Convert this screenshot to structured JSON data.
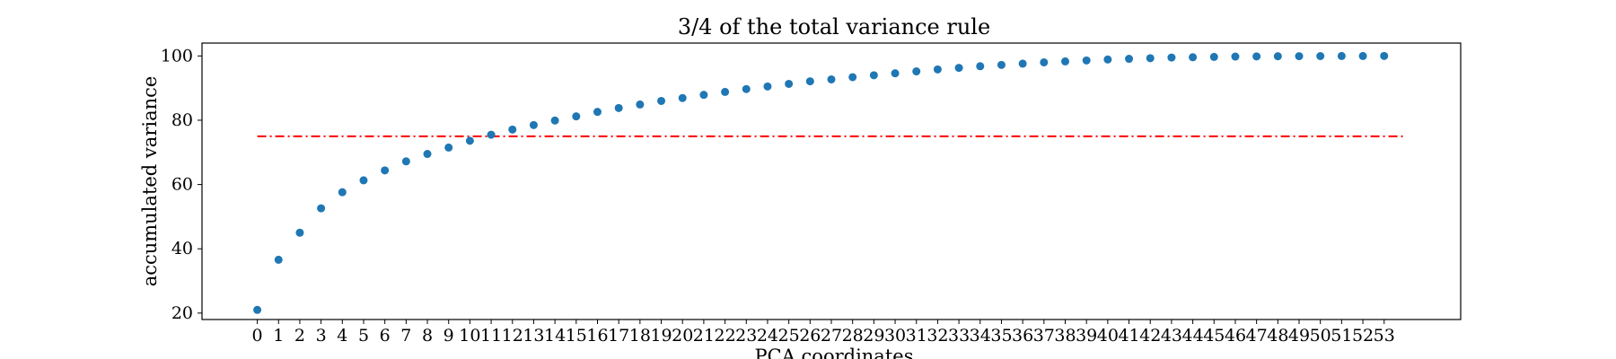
{
  "chart_data": {
    "type": "scatter",
    "title": "3/4 of the total variance rule",
    "xlabel": "PCA coordinates",
    "ylabel": "accumulated variance",
    "xlim": [
      -2.6,
      56.6
    ],
    "ylim": [
      18,
      104
    ],
    "x_ticks": [
      0,
      1,
      2,
      3,
      4,
      5,
      6,
      7,
      8,
      9,
      10,
      11,
      12,
      13,
      14,
      15,
      16,
      17,
      18,
      19,
      20,
      21,
      22,
      23,
      24,
      25,
      26,
      27,
      28,
      29,
      30,
      31,
      32,
      33,
      34,
      35,
      36,
      37,
      38,
      39,
      40,
      41,
      42,
      43,
      44,
      45,
      46,
      47,
      48,
      49,
      50,
      51,
      52,
      53
    ],
    "y_ticks": [
      20,
      40,
      60,
      80,
      100
    ],
    "grid": false,
    "series": [
      {
        "color": "#1f77b4",
        "x": [
          0,
          1,
          2,
          3,
          4,
          5,
          6,
          7,
          8,
          9,
          10,
          11,
          12,
          13,
          14,
          15,
          16,
          17,
          18,
          19,
          20,
          21,
          22,
          23,
          24,
          25,
          26,
          27,
          28,
          29,
          30,
          31,
          32,
          33,
          34,
          35,
          36,
          37,
          38,
          39,
          40,
          41,
          42,
          43,
          44,
          45,
          46,
          47,
          48,
          49,
          50,
          51,
          52,
          53
        ],
        "y": [
          21.0,
          36.6,
          45.0,
          52.6,
          57.6,
          61.3,
          64.4,
          67.2,
          69.5,
          71.5,
          73.6,
          75.5,
          77.1,
          78.5,
          79.9,
          81.2,
          82.6,
          83.8,
          84.9,
          86.0,
          86.9,
          87.9,
          88.8,
          89.7,
          90.5,
          91.3,
          92.1,
          92.7,
          93.4,
          94.0,
          94.6,
          95.2,
          95.8,
          96.3,
          96.8,
          97.2,
          97.6,
          98.0,
          98.3,
          98.6,
          98.9,
          99.1,
          99.3,
          99.5,
          99.6,
          99.7,
          99.8,
          99.85,
          99.9,
          99.93,
          99.95,
          99.97,
          99.98,
          100.0
        ]
      }
    ],
    "reference_line": {
      "y": 75,
      "x_range": [
        0,
        54
      ],
      "color": "#ff0000",
      "style": "dashdot"
    }
  }
}
